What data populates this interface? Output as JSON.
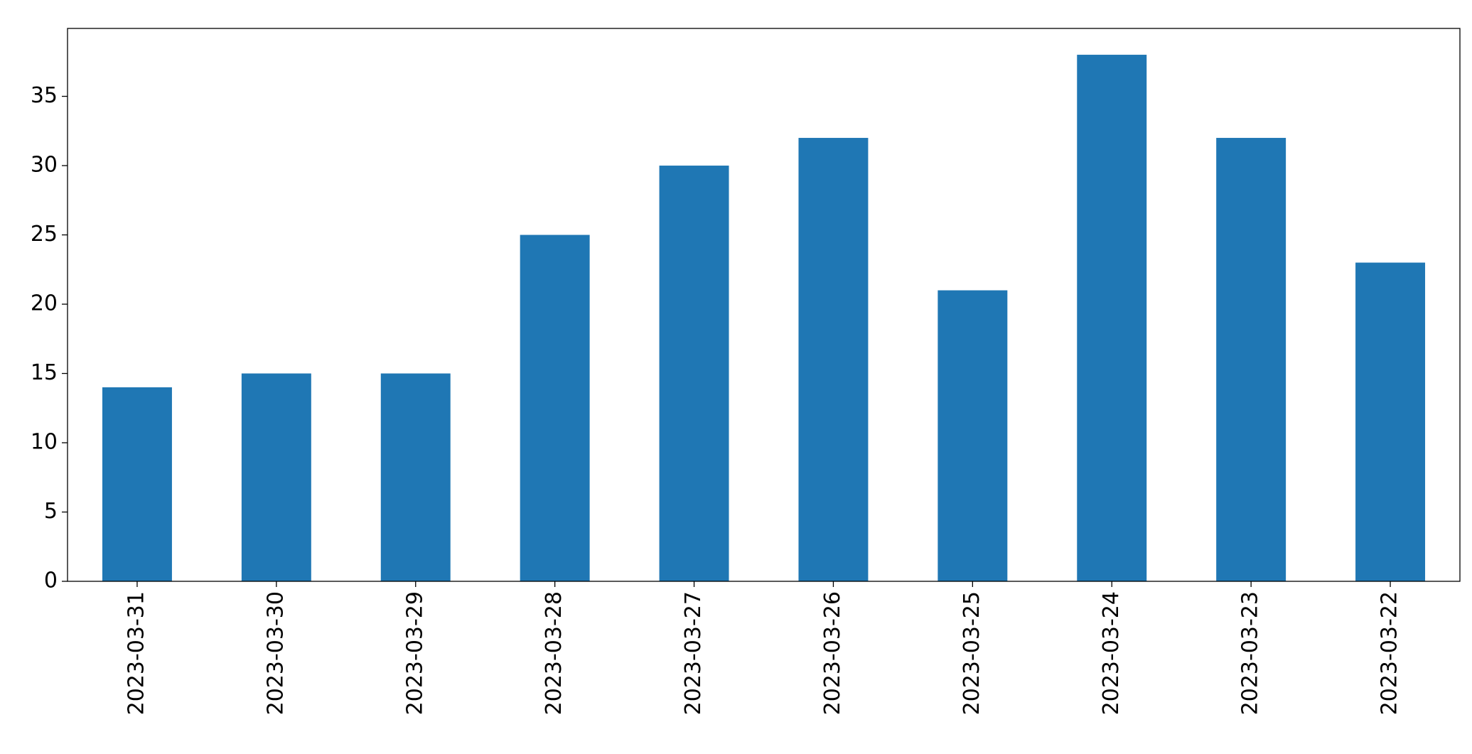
{
  "chart_data": {
    "type": "bar",
    "categories": [
      "2023-03-31",
      "2023-03-30",
      "2023-03-29",
      "2023-03-28",
      "2023-03-27",
      "2023-03-26",
      "2023-03-25",
      "2023-03-24",
      "2023-03-23",
      "2023-03-22"
    ],
    "values": [
      14,
      15,
      15,
      25,
      30,
      32,
      21,
      38,
      32,
      23
    ],
    "color": "#1f77b4",
    "ylim": [
      0,
      39.9
    ],
    "yticks": [
      0,
      5,
      10,
      15,
      20,
      25,
      30,
      35
    ],
    "grid": false
  }
}
